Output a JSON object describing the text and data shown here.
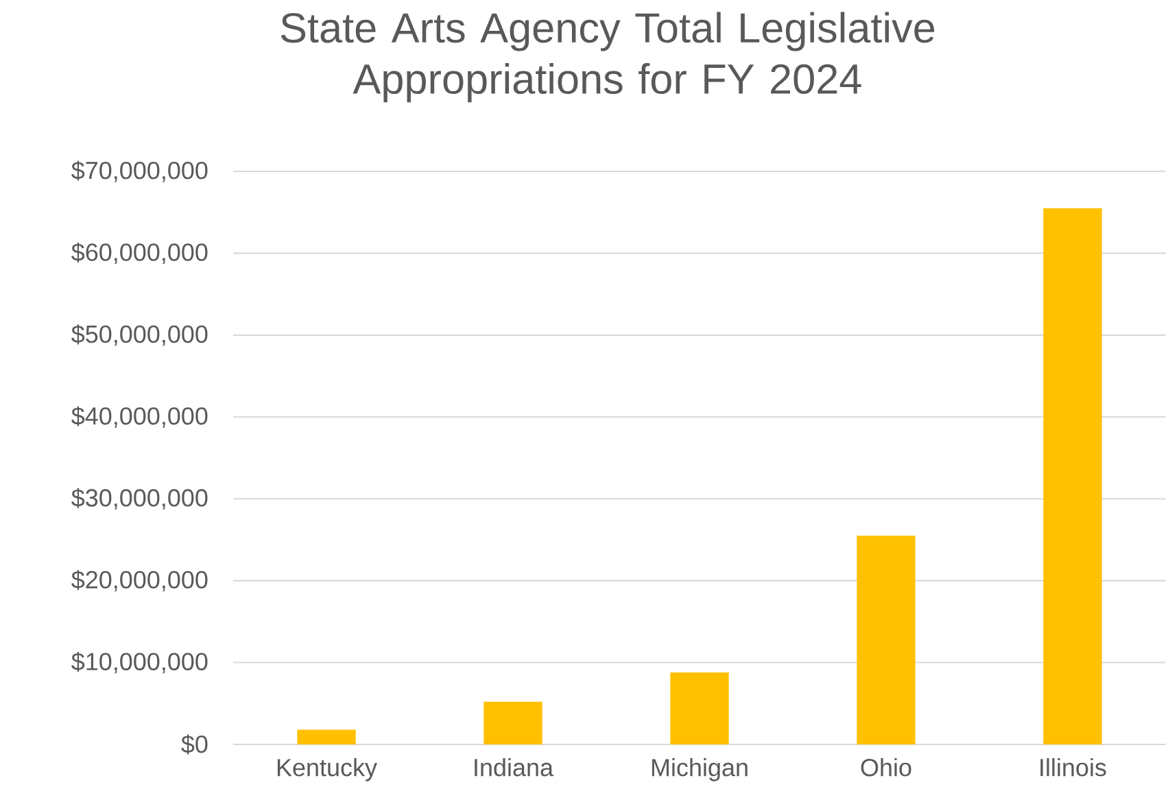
{
  "chart_data": {
    "type": "bar",
    "title": "State Arts Agency Total Legislative Appropriations for FY 2024",
    "categories": [
      "Kentucky",
      "Indiana",
      "Michigan",
      "Ohio",
      "Illinois"
    ],
    "values": [
      1800000,
      5200000,
      8800000,
      25500000,
      65500000
    ],
    "color": "#ffc000",
    "ylim": [
      0,
      70000000
    ],
    "yticks": [
      {
        "value": 0,
        "label": "$0"
      },
      {
        "value": 10000000,
        "label": "$10,000,000"
      },
      {
        "value": 20000000,
        "label": "$20,000,000"
      },
      {
        "value": 30000000,
        "label": "$30,000,000"
      },
      {
        "value": 40000000,
        "label": "$40,000,000"
      },
      {
        "value": 50000000,
        "label": "$50,000,000"
      },
      {
        "value": 60000000,
        "label": "$60,000,000"
      },
      {
        "value": 70000000,
        "label": "$70,000,000"
      }
    ],
    "grid": "y"
  }
}
